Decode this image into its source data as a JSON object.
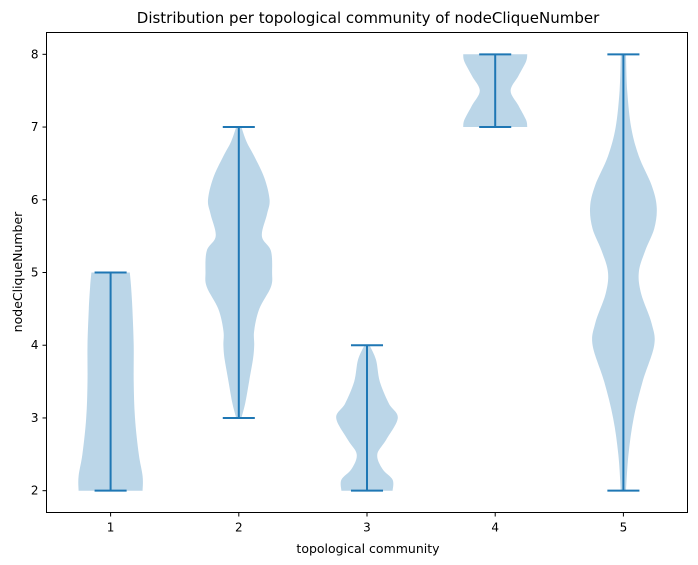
{
  "chart_data": {
    "type": "violin",
    "title": "Distribution per topological community of nodeCliqueNumber",
    "xlabel": "topological community",
    "ylabel": "nodeCliqueNumber",
    "categories": [
      "1",
      "2",
      "3",
      "4",
      "5"
    ],
    "xlim": [
      0.5,
      5.5
    ],
    "ylim": [
      1.7,
      8.3
    ],
    "yticks": [
      "2",
      "3",
      "4",
      "5",
      "6",
      "7",
      "8"
    ],
    "grid": false,
    "color": "#1f77b4",
    "violins": [
      {
        "category": "1",
        "min": 2,
        "max": 5,
        "profile": [
          [
            2.0,
            0.25
          ],
          [
            2.2,
            0.25
          ],
          [
            2.5,
            0.22
          ],
          [
            3.0,
            0.19
          ],
          [
            3.5,
            0.18
          ],
          [
            4.0,
            0.18
          ],
          [
            4.5,
            0.17
          ],
          [
            4.8,
            0.16
          ],
          [
            5.0,
            0.15
          ]
        ]
      },
      {
        "category": "2",
        "min": 3,
        "max": 7,
        "profile": [
          [
            3.0,
            0.02
          ],
          [
            3.2,
            0.05
          ],
          [
            3.5,
            0.08
          ],
          [
            3.8,
            0.11
          ],
          [
            4.0,
            0.12
          ],
          [
            4.2,
            0.12
          ],
          [
            4.5,
            0.16
          ],
          [
            4.8,
            0.25
          ],
          [
            5.0,
            0.26
          ],
          [
            5.3,
            0.25
          ],
          [
            5.5,
            0.18
          ],
          [
            5.8,
            0.22
          ],
          [
            6.0,
            0.24
          ],
          [
            6.3,
            0.2
          ],
          [
            6.6,
            0.12
          ],
          [
            6.8,
            0.06
          ],
          [
            7.0,
            0.02
          ]
        ]
      },
      {
        "category": "3",
        "min": 2,
        "max": 4,
        "profile": [
          [
            2.0,
            0.2
          ],
          [
            2.15,
            0.2
          ],
          [
            2.3,
            0.12
          ],
          [
            2.5,
            0.08
          ],
          [
            2.7,
            0.15
          ],
          [
            3.0,
            0.24
          ],
          [
            3.2,
            0.17
          ],
          [
            3.5,
            0.1
          ],
          [
            3.8,
            0.07
          ],
          [
            4.0,
            0.02
          ]
        ]
      },
      {
        "category": "4",
        "min": 7,
        "max": 8,
        "profile": [
          [
            7.0,
            0.25
          ],
          [
            7.1,
            0.24
          ],
          [
            7.3,
            0.18
          ],
          [
            7.5,
            0.12
          ],
          [
            7.7,
            0.18
          ],
          [
            7.9,
            0.24
          ],
          [
            8.0,
            0.25
          ]
        ]
      },
      {
        "category": "5",
        "min": 2,
        "max": 8,
        "profile": [
          [
            2.0,
            0.02
          ],
          [
            2.5,
            0.04
          ],
          [
            3.0,
            0.08
          ],
          [
            3.5,
            0.15
          ],
          [
            4.0,
            0.24
          ],
          [
            4.3,
            0.22
          ],
          [
            4.7,
            0.14
          ],
          [
            5.0,
            0.12
          ],
          [
            5.3,
            0.17
          ],
          [
            5.6,
            0.24
          ],
          [
            5.9,
            0.26
          ],
          [
            6.2,
            0.22
          ],
          [
            6.6,
            0.12
          ],
          [
            7.0,
            0.06
          ],
          [
            7.5,
            0.03
          ],
          [
            8.0,
            0.02
          ]
        ]
      }
    ]
  }
}
